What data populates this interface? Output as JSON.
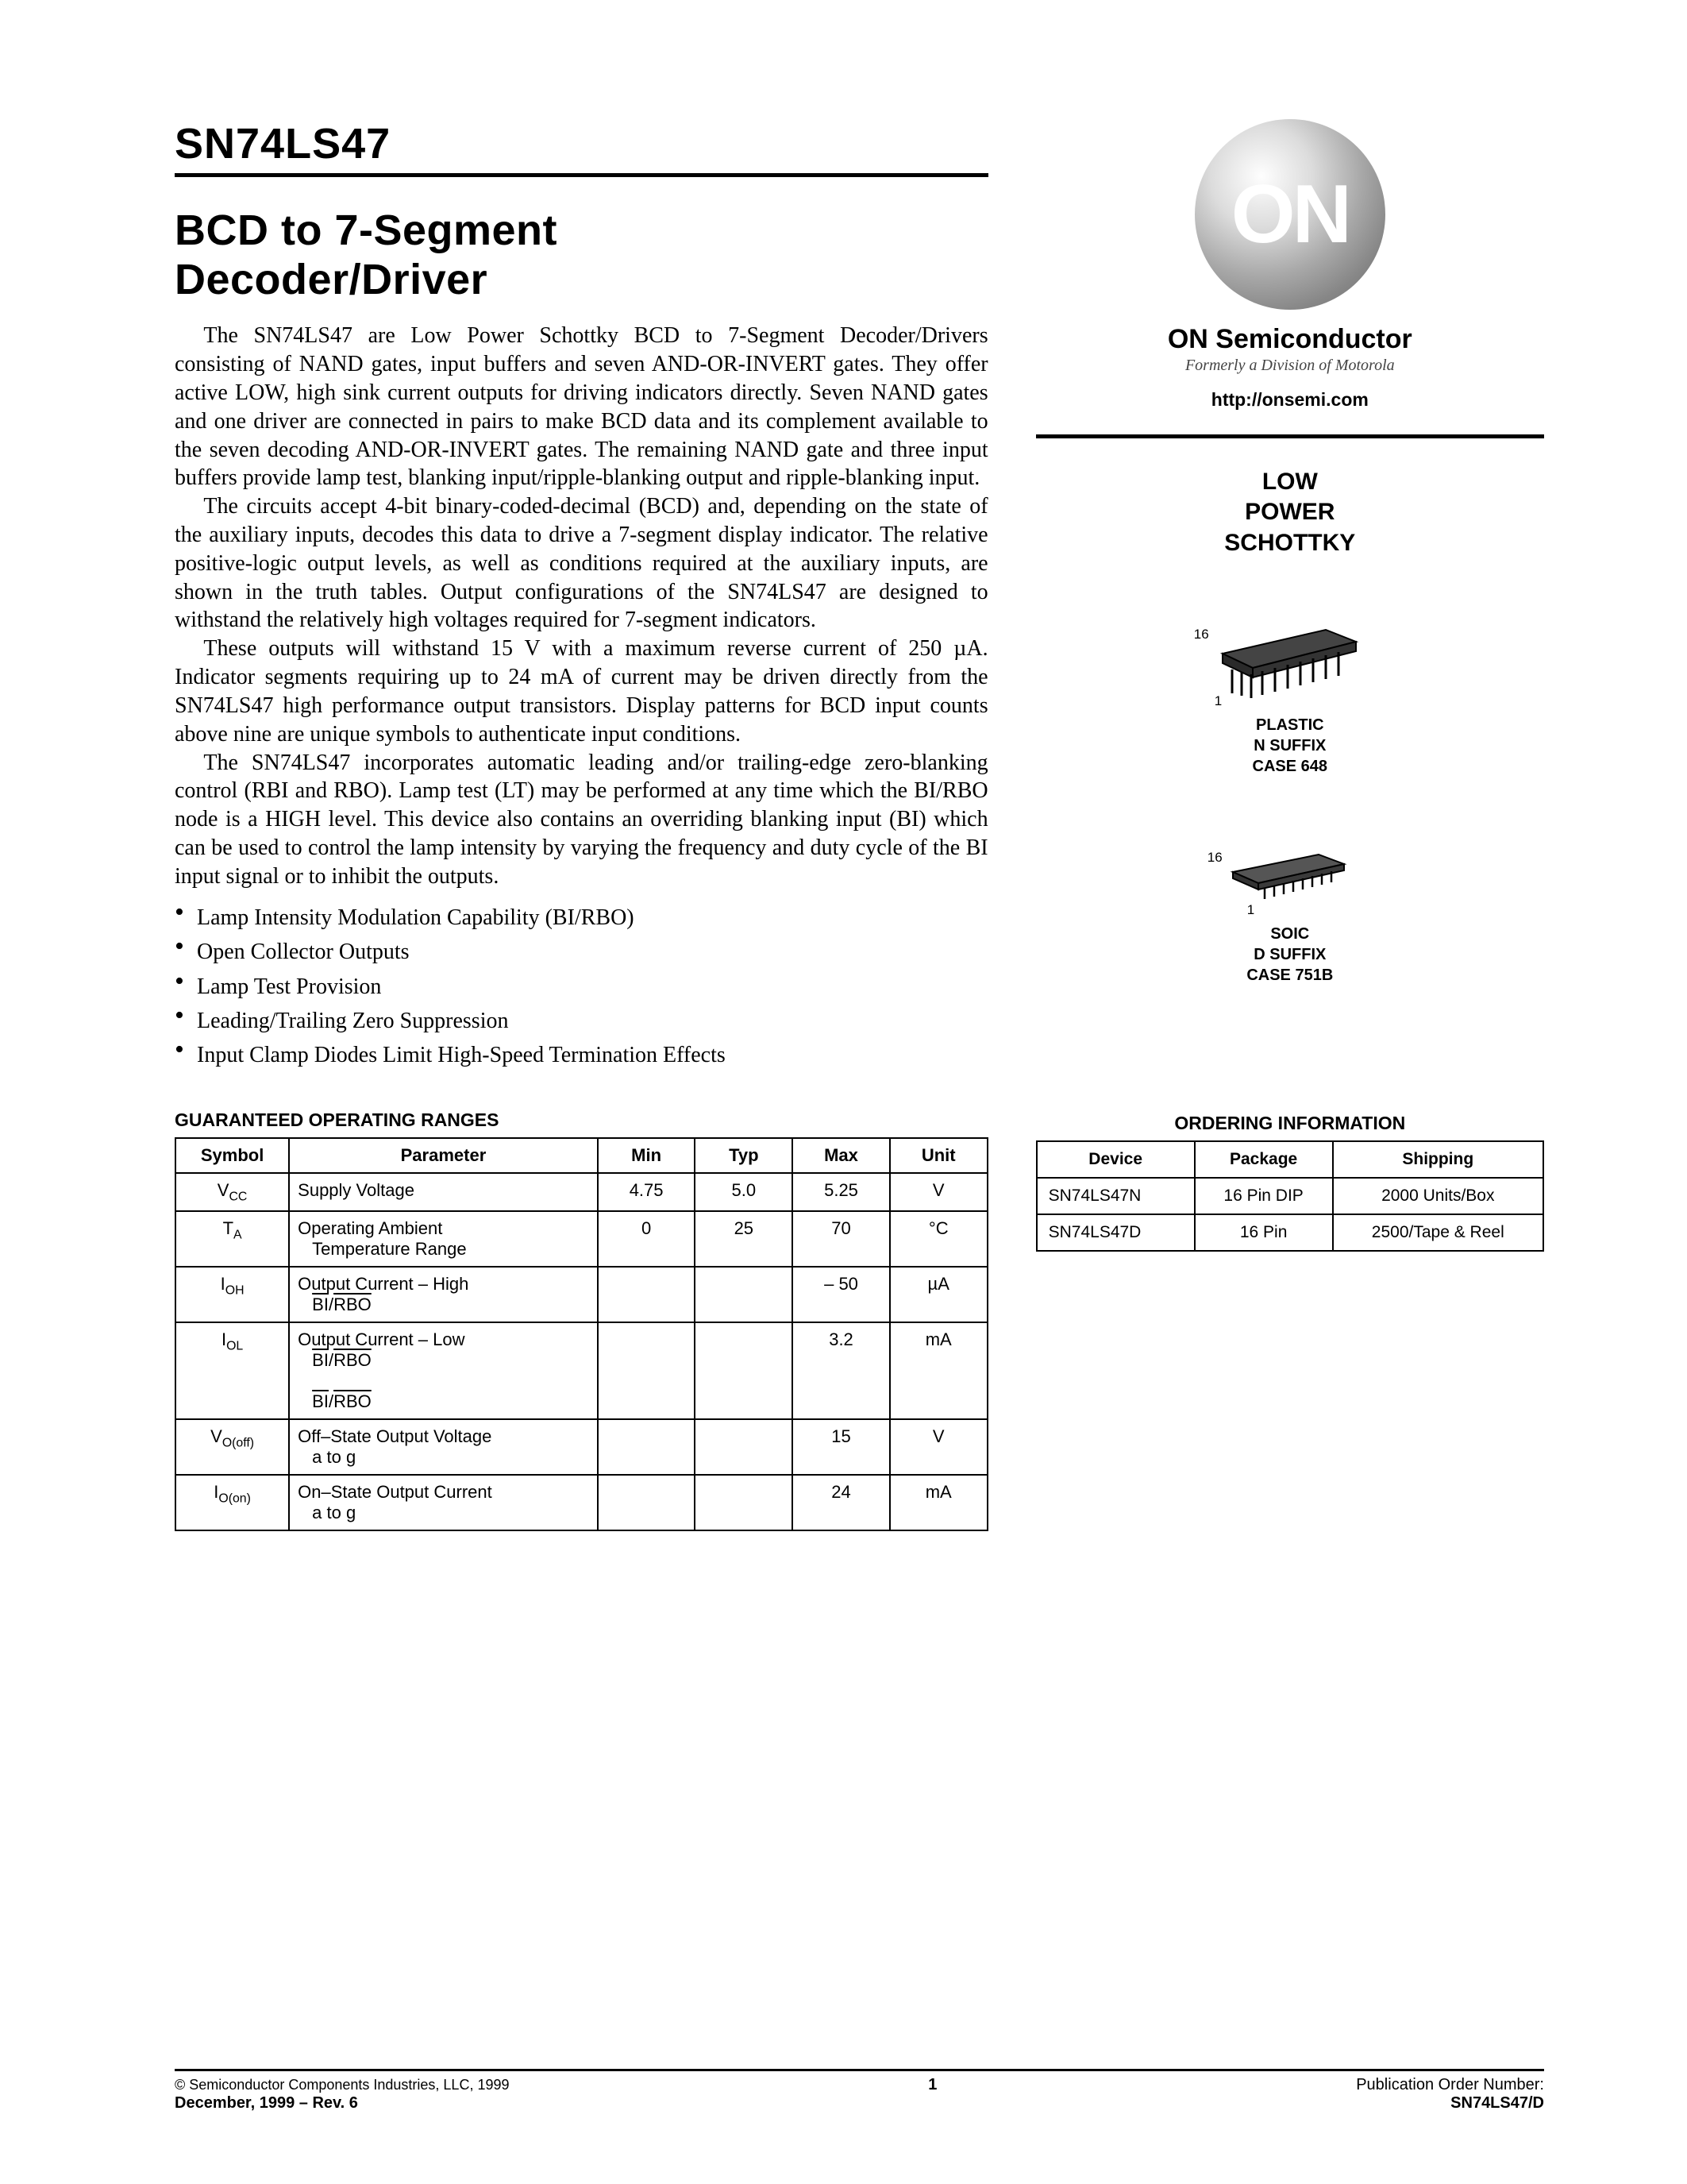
{
  "header": {
    "part_number": "SN74LS47",
    "title_line1": "BCD to 7-Segment",
    "title_line2": "Decoder/Driver"
  },
  "paragraphs": {
    "p1": "The SN74LS47 are Low Power Schottky BCD to 7-Segment Decoder/Drivers consisting of NAND gates, input buffers and seven AND-OR-INVERT gates. They offer active LOW, high sink current outputs for driving indicators directly. Seven NAND gates and one driver are connected in pairs to make BCD data and its complement available to the seven decoding AND-OR-INVERT gates. The remaining NAND gate and three input buffers provide lamp test, blanking input/ripple-blanking output and ripple-blanking input.",
    "p2": "The circuits accept 4-bit binary-coded-decimal (BCD) and, depending on the state of the auxiliary inputs, decodes this data to drive a 7-segment display indicator. The relative positive-logic output levels, as well as conditions required at the auxiliary inputs, are shown in the truth tables. Output configurations of the SN74LS47 are designed to withstand the relatively high voltages required for 7-segment indicators.",
    "p3": "These outputs will withstand 15 V with a maximum reverse current of 250 µA. Indicator segments requiring up to 24 mA of current may be driven directly from the SN74LS47 high performance output transistors. Display patterns for BCD input counts above nine are unique symbols to authenticate input conditions.",
    "p4": "The SN74LS47 incorporates automatic leading and/or trailing-edge zero-blanking control (RBI and RBO). Lamp test (LT) may be performed at any time which the BI/RBO node is a HIGH level. This device also contains an overriding blanking input (BI) which can be used to control the lamp intensity by varying the frequency and duty cycle of the BI input signal or to inhibit the outputs."
  },
  "bullets": [
    "Lamp Intensity Modulation Capability (BI/RBO)",
    "Open Collector Outputs",
    "Lamp Test Provision",
    "Leading/Trailing Zero Suppression",
    "Input Clamp Diodes Limit High-Speed Termination Effects"
  ],
  "spec_table": {
    "heading": "GUARANTEED OPERATING RANGES",
    "headers": [
      "Symbol",
      "Parameter",
      "Min",
      "Typ",
      "Max",
      "Unit"
    ],
    "rows": [
      {
        "sym_html": "V<span class='sub'>CC</span>",
        "param_html": "Supply Voltage",
        "min": "4.75",
        "typ": "5.0",
        "max": "5.25",
        "unit": "V"
      },
      {
        "sym_html": "T<span class='sub'>A</span>",
        "param_html": "Operating Ambient<br><span class='param-indent'>Temperature Range</span>",
        "min": "0",
        "typ": "25",
        "max": "70",
        "unit": "°C"
      },
      {
        "sym_html": "I<span class='sub'>OH</span>",
        "param_html": "Output Current – High<br><span class='param-indent'><span class='overline'>BI</span>/<span class='overline'>RBO</span></span>",
        "min": "",
        "typ": "",
        "max": "– 50",
        "unit": "µA"
      },
      {
        "sym_html": "I<span class='sub'>OL</span>",
        "param_html": "Output Current – Low<br><span class='param-indent'><span class='overline'>BI</span>/<span class='overline'>RBO</span></span><br><span class='param-indent'><span class='overline'>BI</span>/<span class='overline'>RBO</span></span>",
        "min": "",
        "typ": "",
        "max": "3.2",
        "unit": "mA"
      },
      {
        "sym_html": "V<span class='sub'>O(off)</span>",
        "param_html": "Off–State Output Voltage<br><span class='param-indent'>a to g</span>",
        "min": "",
        "typ": "",
        "max": "15",
        "unit": "V"
      },
      {
        "sym_html": "I<span class='sub'>O(on)</span>",
        "param_html": "On–State Output Current<br><span class='param-indent'>a to g</span>",
        "min": "",
        "typ": "",
        "max": "24",
        "unit": "mA"
      }
    ]
  },
  "brand": {
    "logo_text": "ON",
    "name": "ON Semiconductor",
    "formerly": "Formerly a Division of Motorola",
    "url": "http://onsemi.com",
    "category_l1": "LOW",
    "category_l2": "POWER",
    "category_l3": "SCHOTTKY"
  },
  "packages": [
    {
      "pin_hi": "16",
      "pin_lo": "1",
      "l1": "PLASTIC",
      "l2": "N SUFFIX",
      "l3": "CASE 648"
    },
    {
      "pin_hi": "16",
      "pin_lo": "1",
      "l1": "SOIC",
      "l2": "D SUFFIX",
      "l3": "CASE 751B"
    }
  ],
  "ordering": {
    "heading": "ORDERING INFORMATION",
    "headers": [
      "Device",
      "Package",
      "Shipping"
    ],
    "rows": [
      [
        "SN74LS47N",
        "16 Pin DIP",
        "2000 Units/Box"
      ],
      [
        "SN74LS47D",
        "16 Pin",
        "2500/Tape & Reel"
      ]
    ]
  },
  "footer": {
    "copyright": "©  Semiconductor Components Industries, LLC, 1999",
    "date": "December, 1999 – Rev. 6",
    "page": "1",
    "pub_label": "Publication Order Number:",
    "pub_num": "SN74LS47/D"
  }
}
